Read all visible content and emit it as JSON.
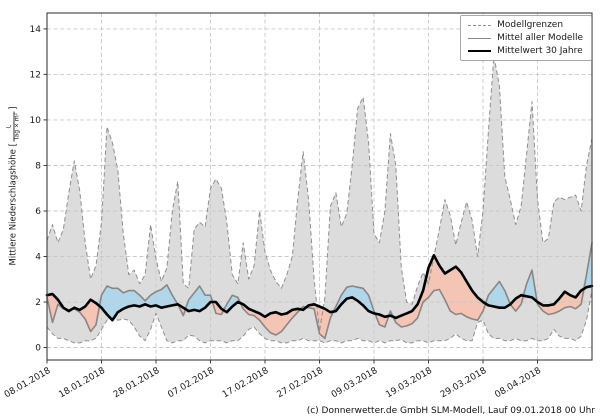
{
  "figure": {
    "caption": "(c) Donnerwetter.de GmbH SLM-Modell, Lauf 09.01.2018 00 Uhr",
    "ylabel_prefix": "Mittlere Niederschlagshöhe [",
    "ylabel_frac_num": "L",
    "ylabel_frac_den": "Tag × m²",
    "ylabel_suffix": "]"
  },
  "legend": {
    "items": [
      {
        "label": "Modellgrenzen",
        "style": "dashed-gray"
      },
      {
        "label": "Mittel aller Modelle",
        "style": "solid-gray"
      },
      {
        "label": "Mittelwert 30 Jahre",
        "style": "solid-black-thick"
      }
    ]
  },
  "chart_data": {
    "type": "line",
    "title": "",
    "xlabel": "",
    "ylabel": "Mittlere Niederschlagshöhe [L/(Tag × m²)]",
    "x_unit": "date, daily values",
    "x_start_date": "08.01.2018",
    "x_end_day_index": 100,
    "x_tick_days": [
      0,
      10,
      20,
      30,
      40,
      50,
      60,
      70,
      80,
      90
    ],
    "x_tick_labels": [
      "08.01.2018",
      "18.01.2018",
      "28.01.2018",
      "07.02.2018",
      "17.02.2018",
      "27.02.2018",
      "09.03.2018",
      "19.03.2018",
      "29.03.2018",
      "08.04.2018"
    ],
    "y_ticks": [
      0,
      2,
      4,
      6,
      8,
      10,
      12,
      14
    ],
    "ylim": [
      -0.55,
      14.7
    ],
    "grid": true,
    "legend_position": "upper right",
    "colors": {
      "band_fill": "#dcdcdc",
      "band_edge": "#8f8f8f",
      "mean_line": "#878787",
      "mean30_line": "#000000",
      "above_fill": "#b0d6ea",
      "below_fill": "#f4c4b4",
      "grid": "#c9c9c9",
      "frame": "#3c3c3c",
      "tick_text": "#1a1a1a"
    },
    "series": [
      {
        "key": "upper",
        "name": "Modellgrenzen (oben)",
        "values": [
          4.7,
          5.4,
          4.6,
          5.2,
          6.8,
          8.2,
          6.9,
          4.6,
          3.0,
          3.6,
          5.5,
          9.7,
          9.0,
          7.8,
          5.0,
          3.2,
          3.4,
          2.8,
          3.2,
          5.4,
          3.9,
          2.9,
          3.5,
          6.0,
          7.3,
          2.8,
          2.6,
          5.2,
          5.5,
          5.3,
          7.0,
          7.4,
          7.0,
          5.5,
          3.2,
          2.8,
          4.6,
          3.0,
          3.6,
          6.0,
          4.2,
          3.4,
          2.9,
          2.6,
          3.2,
          4.0,
          6.5,
          8.6,
          6.5,
          3.0,
          0.7,
          2.2,
          6.2,
          6.8,
          5.3,
          5.9,
          8.0,
          10.5,
          11.0,
          9.0,
          5.0,
          4.6,
          6.0,
          9.4,
          8.0,
          3.5,
          2.0,
          1.9,
          2.7,
          3.3,
          2.8,
          4.0,
          5.2,
          6.5,
          5.8,
          4.5,
          5.5,
          6.4,
          5.6,
          4.0,
          6.0,
          9.5,
          12.8,
          11.5,
          7.5,
          6.5,
          5.4,
          6.2,
          8.5,
          10.8,
          6.5,
          4.6,
          4.8,
          6.4,
          6.6,
          6.5,
          6.6,
          6.7,
          6.0,
          8.0,
          9.2
        ]
      },
      {
        "key": "lower",
        "name": "Modellgrenzen (unten)",
        "values": [
          0.9,
          0.6,
          0.4,
          0.4,
          0.3,
          0.2,
          0.2,
          0.3,
          0.3,
          0.4,
          0.8,
          1.2,
          1.3,
          1.2,
          1.25,
          1.2,
          0.9,
          0.5,
          0.3,
          0.8,
          1.5,
          0.9,
          0.3,
          0.2,
          0.3,
          0.3,
          0.55,
          0.5,
          0.3,
          0.2,
          0.3,
          0.3,
          0.3,
          0.2,
          0.3,
          0.3,
          0.5,
          0.8,
          0.9,
          0.6,
          0.4,
          0.3,
          0.3,
          0.2,
          0.2,
          0.3,
          0.3,
          0.4,
          0.3,
          0.3,
          0.3,
          0.2,
          0.3,
          0.3,
          0.2,
          0.3,
          0.3,
          0.4,
          0.3,
          0.3,
          0.2,
          0.3,
          0.2,
          0.3,
          0.3,
          0.35,
          0.2,
          0.2,
          0.3,
          0.3,
          0.2,
          0.3,
          0.3,
          0.3,
          0.4,
          0.6,
          0.4,
          0.3,
          0.3,
          1.1,
          1.2,
          0.6,
          0.4,
          0.4,
          0.3,
          0.3,
          0.4,
          0.3,
          0.3,
          0.4,
          0.3,
          0.3,
          0.4,
          0.8,
          0.5,
          0.4,
          0.4,
          0.3,
          0.5,
          1.2,
          2.5
        ]
      },
      {
        "key": "mean",
        "name": "Mittel aller Modelle",
        "values": [
          2.2,
          1.1,
          1.9,
          1.7,
          1.65,
          1.7,
          1.55,
          1.25,
          0.7,
          1.0,
          2.3,
          2.7,
          2.6,
          2.6,
          2.4,
          2.5,
          2.5,
          2.3,
          2.05,
          2.3,
          2.45,
          2.55,
          2.75,
          2.3,
          1.9,
          1.4,
          2.1,
          2.4,
          2.7,
          2.3,
          2.3,
          1.5,
          1.45,
          1.9,
          2.3,
          2.2,
          1.7,
          1.45,
          1.4,
          1.2,
          0.9,
          0.65,
          0.55,
          0.7,
          1.0,
          1.3,
          1.55,
          1.8,
          1.75,
          1.7,
          0.6,
          0.4,
          1.3,
          1.8,
          2.3,
          2.65,
          2.7,
          2.65,
          2.6,
          2.3,
          1.6,
          1.0,
          0.9,
          1.6,
          1.1,
          0.9,
          0.95,
          1.05,
          1.3,
          2.0,
          2.2,
          2.5,
          2.55,
          2.1,
          1.6,
          1.45,
          1.5,
          1.35,
          1.25,
          1.2,
          1.6,
          2.3,
          2.6,
          2.9,
          2.5,
          1.9,
          1.6,
          1.9,
          2.8,
          3.4,
          1.9,
          1.6,
          1.45,
          1.5,
          1.6,
          1.75,
          1.8,
          1.7,
          1.9,
          3.2,
          4.6
        ]
      },
      {
        "key": "mean30",
        "name": "Mittelwert 30 Jahre",
        "values": [
          2.3,
          2.35,
          2.1,
          1.75,
          1.6,
          1.75,
          1.65,
          1.8,
          2.1,
          1.95,
          1.75,
          1.45,
          1.2,
          1.55,
          1.7,
          1.8,
          1.85,
          1.8,
          1.9,
          1.8,
          1.85,
          1.75,
          1.8,
          1.85,
          1.9,
          1.75,
          1.6,
          1.65,
          1.6,
          1.75,
          2.0,
          2.0,
          1.7,
          1.55,
          1.8,
          2.0,
          1.9,
          1.7,
          1.6,
          1.5,
          1.35,
          1.5,
          1.55,
          1.45,
          1.5,
          1.65,
          1.7,
          1.65,
          1.85,
          1.9,
          1.8,
          1.7,
          1.55,
          1.6,
          1.9,
          2.15,
          2.2,
          2.05,
          1.85,
          1.6,
          1.5,
          1.45,
          1.35,
          1.4,
          1.3,
          1.4,
          1.5,
          1.6,
          1.9,
          2.5,
          3.5,
          4.05,
          3.6,
          3.25,
          3.4,
          3.55,
          3.3,
          2.9,
          2.5,
          2.2,
          2.0,
          1.85,
          1.8,
          1.75,
          1.75,
          1.9,
          2.15,
          2.3,
          2.25,
          2.2,
          2.0,
          1.85,
          1.85,
          1.9,
          2.15,
          2.45,
          2.3,
          2.2,
          2.5,
          2.65,
          2.7
        ]
      }
    ]
  }
}
